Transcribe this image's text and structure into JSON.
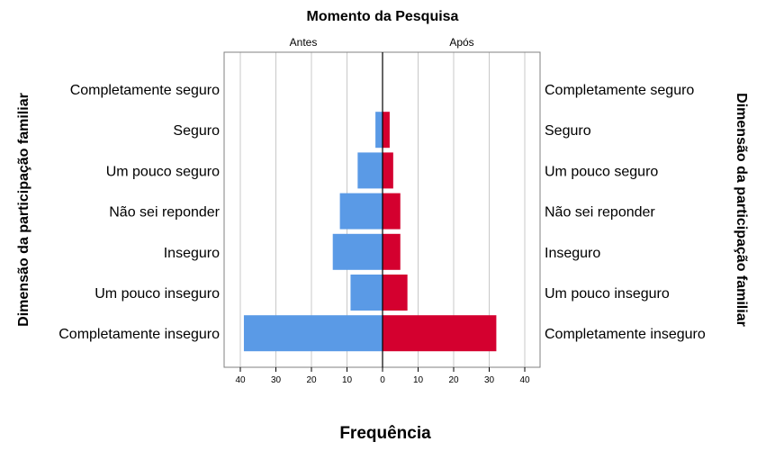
{
  "chart_data": {
    "type": "bar",
    "subtype": "population-pyramid",
    "title": "Momento da Pesquisa",
    "xlabel": "Frequência",
    "ylabel": "Dimensão da participação familiar",
    "categories": [
      "Completamente seguro",
      "Seguro",
      "Um pouco seguro",
      "Não sei reponder",
      "Inseguro",
      "Um pouco inseguro",
      "Completamente inseguro"
    ],
    "series": [
      {
        "name": "Antes",
        "color": "#5a9ae6",
        "values": [
          0,
          2,
          7,
          12,
          14,
          9,
          39
        ]
      },
      {
        "name": "Após",
        "color": "#d4002f",
        "values": [
          0,
          2,
          3,
          5,
          5,
          7,
          32
        ]
      }
    ],
    "xticks": [
      40,
      30,
      20,
      10,
      0,
      10,
      20,
      30,
      40
    ],
    "xlim": [
      -40,
      40
    ],
    "grid": true
  }
}
